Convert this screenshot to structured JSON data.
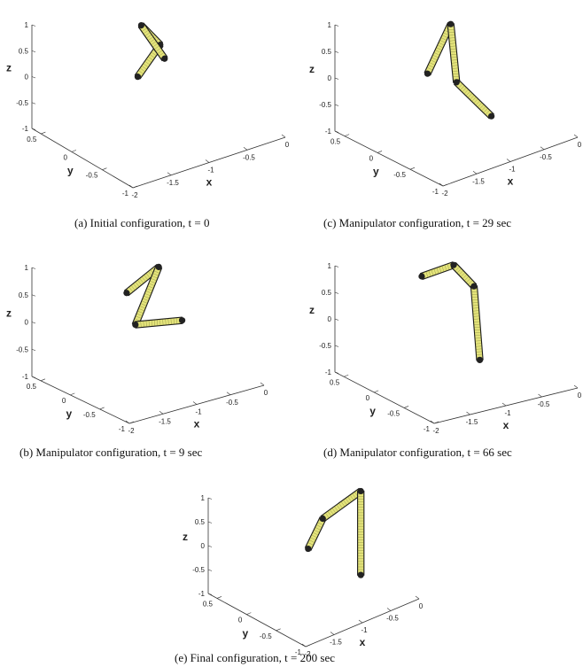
{
  "figure": {
    "panels": [
      {
        "id": "a",
        "caption": "(a) Initial configuration, t = 0",
        "z_ticks": [
          "1",
          "0.5",
          "0",
          "-0.5",
          "-1"
        ],
        "y_ticks": [
          "0.5",
          "0",
          "-0.5",
          "-1"
        ],
        "x_ticks": [
          "-2",
          "-1.5",
          "-1",
          "-0.5",
          "0"
        ],
        "z_label": "z",
        "y_label": "y",
        "x_label": "x",
        "link_points": [
          [
            0.168,
            0.55
          ],
          [
            0.245,
            0.78
          ],
          [
            0.18,
            0.92
          ],
          [
            0.26,
            0.68
          ]
        ]
      },
      {
        "id": "c",
        "caption": "(c) Manipulator configuration, t = 29 sec",
        "z_ticks": [
          "1",
          "0.5",
          "0",
          "-0.5",
          "-1"
        ],
        "y_ticks": [
          "0.5",
          "0",
          "-0.5",
          "-1"
        ],
        "x_ticks": [
          "-2",
          "-1.5",
          "-1",
          "-0.5",
          "0"
        ],
        "z_label": "z",
        "y_label": "y",
        "x_label": "x",
        "link_points": [
          [
            0.16,
            0.58
          ],
          [
            0.24,
            0.93
          ],
          [
            0.26,
            0.52
          ],
          [
            0.38,
            0.28
          ]
        ]
      },
      {
        "id": "b",
        "caption": "(b) Manipulator configuration, t = 9 sec",
        "z_ticks": [
          "1",
          "0.5",
          "0",
          "-0.5",
          "-1"
        ],
        "y_ticks": [
          "0.5",
          "0",
          "-0.5",
          "-1"
        ],
        "x_ticks": [
          "-2",
          "-1.5",
          "-1",
          "-0.5",
          "0"
        ],
        "z_label": "z",
        "y_label": "y",
        "x_label": "x",
        "link_points": [
          [
            0.13,
            0.75
          ],
          [
            0.24,
            0.93
          ],
          [
            0.16,
            0.53
          ],
          [
            0.32,
            0.56
          ]
        ]
      },
      {
        "id": "d",
        "caption": "(d) Manipulator configuration, t = 66 sec",
        "z_ticks": [
          "1",
          "0.5",
          "0",
          "-0.5",
          "-1"
        ],
        "y_ticks": [
          "0.5",
          "0",
          "-0.5",
          "-1"
        ],
        "x_ticks": [
          "-2",
          "-1.5",
          "-1",
          "-0.5",
          "0"
        ],
        "z_label": "z",
        "y_label": "y",
        "x_label": "x",
        "link_points": [
          [
            0.14,
            0.85
          ],
          [
            0.25,
            0.93
          ],
          [
            0.32,
            0.78
          ],
          [
            0.34,
            0.26
          ]
        ]
      },
      {
        "id": "e",
        "caption": "(e) Final configuration, t = 200 sec",
        "z_ticks": [
          "1",
          "0.5",
          "0",
          "-0.5",
          "-1"
        ],
        "y_ticks": [
          "0.5",
          "0",
          "-0.5",
          "-1"
        ],
        "x_ticks": [
          "-2",
          "-1.5",
          "-1",
          "-0.5",
          "0"
        ],
        "z_label": "z",
        "y_label": "y",
        "x_label": "x",
        "link_points": [
          [
            0.16,
            0.53
          ],
          [
            0.21,
            0.76
          ],
          [
            0.34,
            0.97
          ],
          [
            0.34,
            0.33
          ]
        ]
      }
    ]
  },
  "colors": {
    "link_fill": "#e3e37a",
    "link_stroke": "#1a1a1a",
    "axis": "#333333"
  }
}
